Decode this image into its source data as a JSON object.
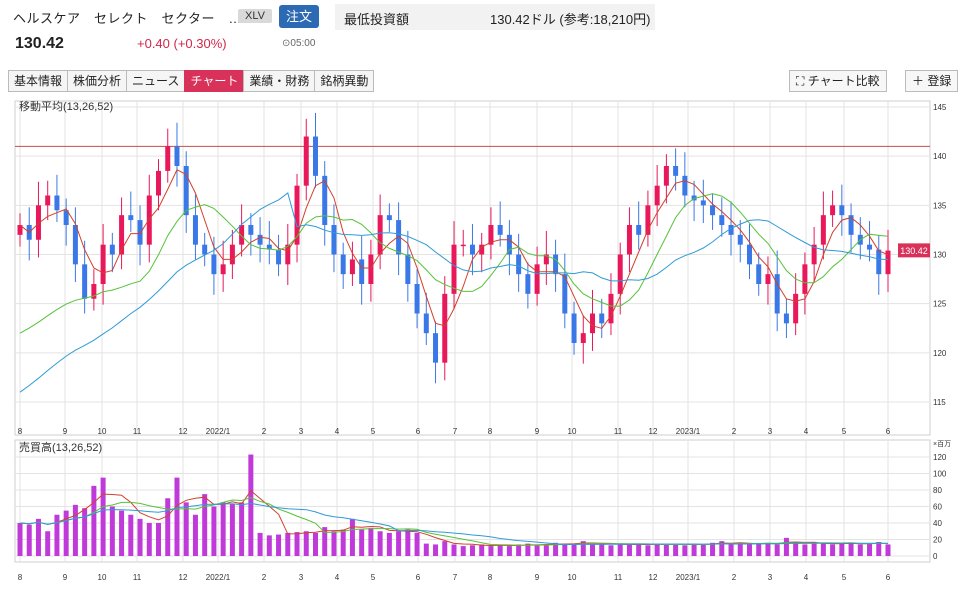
{
  "header": {
    "name": "ヘルスケア　セレクト　セクター　…",
    "ticker": "XLV",
    "order_label": "注文",
    "price": "130.42",
    "change": "+0.40 (+0.30%)",
    "time": "⊙05:00"
  },
  "min_invest": {
    "label": "最低投資額",
    "value": "130.42ドル (参考:18,210円)"
  },
  "tabs": [
    "基本情報",
    "株価分析",
    "ニュース",
    "チャート",
    "業績・財務",
    "銘柄異動"
  ],
  "active_tab": 3,
  "buttons": {
    "compare": "⛶ チャート比較",
    "register": "＋ 登録"
  },
  "colors": {
    "up": "#e8185a",
    "down": "#3b78e7",
    "volume": "#c03ad9",
    "ma13": "#d2402a",
    "ma26": "#56c23a",
    "ma52": "#2e9bd6",
    "hline": "#c0504d"
  },
  "chart_data": {
    "type": "candlestick",
    "price_panel_label": "移動平均(13,26,52)",
    "volume_panel_label": "売買高(13,26,52)",
    "volume_unit": "×百万",
    "y_ticks": [
      145,
      140,
      135,
      130,
      125,
      120,
      115
    ],
    "vol_ticks": [
      120,
      100,
      80,
      60,
      40,
      20,
      0
    ],
    "current_price_label": "130.42",
    "x_labels": [
      "8",
      "9",
      "10",
      "11",
      "12",
      "2022/1",
      "2",
      "3",
      "4",
      "5",
      "6",
      "7",
      "8",
      "9",
      "10",
      "11",
      "12",
      "2023/1",
      "2",
      "3",
      "4",
      "5",
      "6"
    ],
    "hline_value": 141
  }
}
